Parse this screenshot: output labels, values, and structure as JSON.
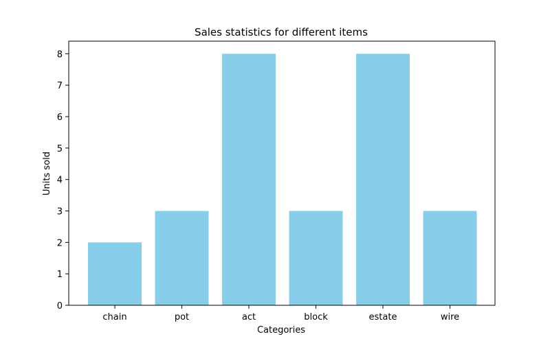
{
  "chart_data": {
    "type": "bar",
    "title": "Sales statistics for different items",
    "xlabel": "Categories",
    "ylabel": "Units sold",
    "categories": [
      "chain",
      "pot",
      "act",
      "block",
      "estate",
      "wire"
    ],
    "values": [
      2,
      3,
      8,
      3,
      8,
      3
    ],
    "ylim": [
      0,
      8.4
    ],
    "yticks": [
      "0",
      "1",
      "2",
      "3",
      "4",
      "5",
      "6",
      "7",
      "8"
    ],
    "grid": false,
    "bar_color": "#87CEEB"
  }
}
